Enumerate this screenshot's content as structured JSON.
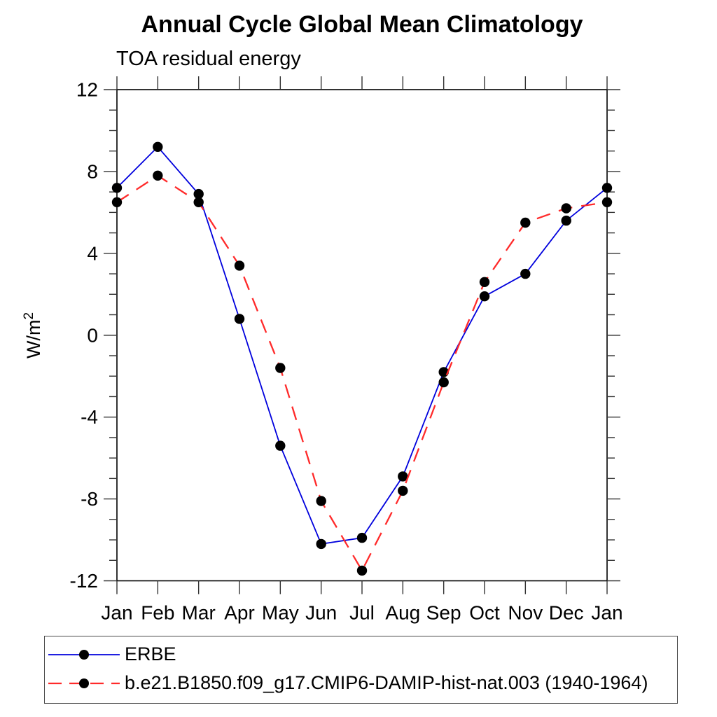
{
  "chart_data": {
    "type": "line",
    "title": "Annual Cycle Global Mean Climatology",
    "subtitle": "TOA residual energy",
    "ylabel": "W/m²",
    "ylabel_base": "W/m",
    "ylabel_exponent": "2",
    "categories": [
      "Jan",
      "Feb",
      "Mar",
      "Apr",
      "May",
      "Jun",
      "Jul",
      "Aug",
      "Sep",
      "Oct",
      "Nov",
      "Dec",
      "Jan"
    ],
    "series": [
      {
        "name": "ERBE",
        "color": "#0000dd",
        "line_style": "solid",
        "line_width": 1.8,
        "marker": "filled-circle",
        "marker_color": "#000000",
        "values": [
          7.2,
          9.2,
          6.9,
          0.8,
          -5.4,
          -10.2,
          -9.9,
          -6.9,
          -1.8,
          1.9,
          3.0,
          5.6,
          7.2
        ]
      },
      {
        "name": "b.e21.B1850.f09_g17.CMIP6-DAMIP-hist-nat.003 (1940-1964)",
        "color": "#ff2a2a",
        "line_style": "dashed",
        "line_width": 2.3,
        "marker": "filled-circle",
        "marker_color": "#000000",
        "values": [
          6.5,
          7.8,
          6.5,
          3.4,
          -1.6,
          -8.1,
          -11.5,
          -7.6,
          -2.3,
          2.6,
          5.5,
          6.2,
          6.5
        ]
      }
    ],
    "ylim": [
      -12,
      12
    ],
    "yticks_major": [
      12,
      8,
      4,
      0,
      -4,
      -8,
      -12
    ],
    "ytick_minor_step": 1,
    "grid": false,
    "legend_position": "bottom-left-box",
    "axis_color": "#000000",
    "tick_color": "#333333"
  }
}
